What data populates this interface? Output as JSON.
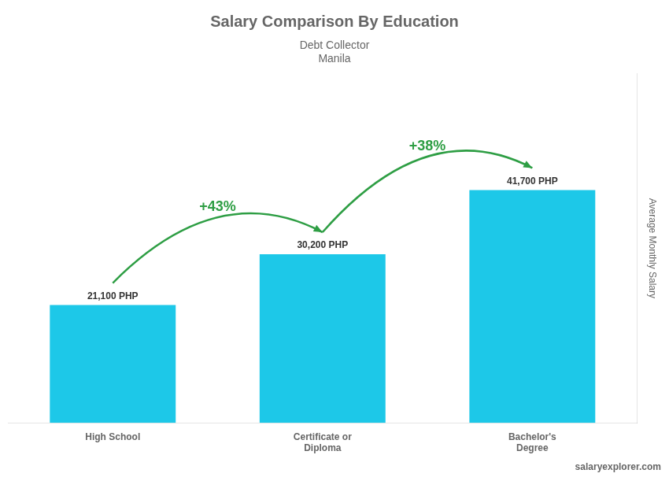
{
  "chart_data": {
    "type": "bar",
    "title": "Salary Comparison By Education",
    "subtitle": [
      "Debt Collector",
      "Manila"
    ],
    "ylabel": "Average Monthly Salary",
    "categories": [
      "High School",
      "Certificate or\nDiploma",
      "Bachelor's\nDegree"
    ],
    "values": [
      21100,
      30200,
      41700
    ],
    "value_labels": [
      "21,100 PHP",
      "30,200 PHP",
      "41,700 PHP"
    ],
    "data_labels": true,
    "annotations": [
      "+43%",
      "+38%"
    ],
    "source": "salaryexplorer.com",
    "color": "#1DC8E8",
    "ylim": [
      0,
      62550
    ],
    "tick_labels": false,
    "grid": false
  }
}
